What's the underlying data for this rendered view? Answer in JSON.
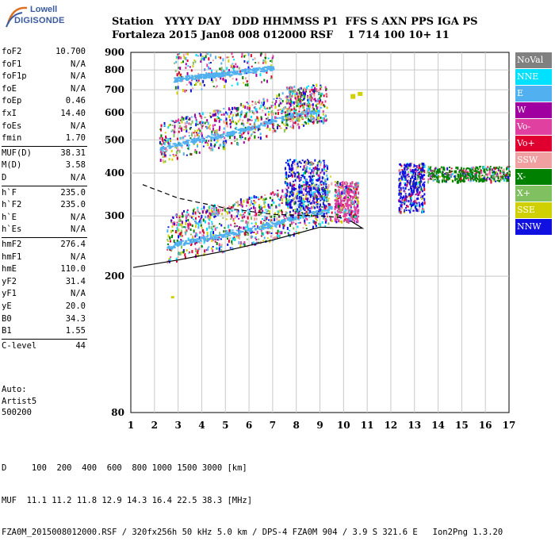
{
  "header": {
    "logo": {
      "line1": "Lowell",
      "line2": "DIGISONDE"
    },
    "row1": "Station   YYYY DAY   DDD HHMMSS P1  FFS S AXN PPS IGA PS",
    "row2": "Fortaleza 2015 Jan08 008 012000 RSF    1 714 100 10+ 11"
  },
  "params": [
    {
      "name": "foF2",
      "value": "10.700"
    },
    {
      "name": "foF1",
      "value": "N/A"
    },
    {
      "name": "foF1p",
      "value": "N/A"
    },
    {
      "name": "foE",
      "value": "N/A"
    },
    {
      "name": "foEp",
      "value": "0.46"
    },
    {
      "name": "fxI",
      "value": "14.40"
    },
    {
      "name": "foEs",
      "value": "N/A"
    },
    {
      "name": "fmin",
      "value": "1.70"
    },
    {
      "name": "MUF(D)",
      "value": "38.31"
    },
    {
      "name": "M(D)",
      "value": "3.58"
    },
    {
      "name": "D",
      "value": "N/A"
    },
    {
      "name": "h`F",
      "value": "235.0"
    },
    {
      "name": "h`F2",
      "value": "235.0"
    },
    {
      "name": "h`E",
      "value": "N/A"
    },
    {
      "name": "h`Es",
      "value": "N/A"
    },
    {
      "name": "hmF2",
      "value": "276.4"
    },
    {
      "name": "hmF1",
      "value": "N/A"
    },
    {
      "name": "hmE",
      "value": "110.0"
    },
    {
      "name": "yF2",
      "value": "31.4"
    },
    {
      "name": "yF1",
      "value": "N/A"
    },
    {
      "name": "yE",
      "value": "20.0"
    },
    {
      "name": "B0",
      "value": "34.3"
    },
    {
      "name": "B1",
      "value": "1.55"
    },
    {
      "name": "C-level",
      "value": "44"
    }
  ],
  "auto": {
    "line1": "Auto:",
    "line2": "Artist5",
    "line3": "500200"
  },
  "legend": [
    {
      "label": "NoVal",
      "color": "#808080"
    },
    {
      "label": "NNE",
      "color": "#00e0ff"
    },
    {
      "label": "E",
      "color": "#50b0f0"
    },
    {
      "label": "W",
      "color": "#a000a0"
    },
    {
      "label": "Vo-",
      "color": "#e040a0"
    },
    {
      "label": "Vo+",
      "color": "#e00030"
    },
    {
      "label": "SSW",
      "color": "#f0a0a0"
    },
    {
      "label": "X-",
      "color": "#008000"
    },
    {
      "label": "X+",
      "color": "#80c060"
    },
    {
      "label": "SSE",
      "color": "#d0d000"
    },
    {
      "label": "NNW",
      "color": "#1010e0"
    }
  ],
  "bottom": {
    "line1": "D     100  200  400  600  800 1000 1500 3000 [km]",
    "line2": "MUF  11.1 11.2 11.8 12.9 14.3 16.4 22.5 38.3 [MHz]",
    "line3": "FZA0M_2015008012000.RSF / 320fx256h 50 kHz 5.0 km / DPS-4 FZA0M 904 / 3.9 S 321.6 E   Ion2Png 1.3.20"
  },
  "chart_data": {
    "type": "scatter",
    "xlabel": "",
    "ylabel": "",
    "xlim": [
      1,
      17
    ],
    "ylim": [
      80,
      900
    ],
    "y_scale": "log",
    "x_ticks": [
      1,
      2,
      3,
      4,
      5,
      6,
      7,
      8,
      9,
      10,
      11,
      12,
      13,
      14,
      15,
      16,
      17
    ],
    "y_ticks": [
      80,
      200,
      300,
      400,
      500,
      600,
      700,
      800,
      900
    ],
    "grid": true,
    "legend_position": "right",
    "traces": [
      {
        "name": "F2 trace",
        "direction": "E",
        "x": [
          2.5,
          3,
          4,
          5,
          6,
          7,
          8,
          9,
          9.5
        ],
        "y": [
          242,
          250,
          258,
          265,
          275,
          285,
          298,
          310,
          320
        ]
      },
      {
        "name": "2F trace",
        "direction": "E",
        "x": [
          2.2,
          3,
          4,
          5,
          6,
          7,
          8,
          9
        ],
        "y": [
          470,
          488,
          505,
          520,
          545,
          570,
          595,
          615
        ]
      },
      {
        "name": "3F trace",
        "direction": "E",
        "x": [
          2.8,
          3.5,
          4.5,
          5.5,
          6.5,
          7
        ],
        "y": [
          750,
          765,
          775,
          790,
          805,
          815
        ]
      }
    ],
    "profile_curves": [
      {
        "name": "dashed",
        "x": [
          1.5,
          3,
          5,
          7,
          9,
          10
        ],
        "y": [
          370,
          338,
          316,
          303,
          300,
          296
        ]
      },
      {
        "name": "solid",
        "x": [
          1.1,
          3,
          5,
          7,
          9,
          10.8
        ],
        "y": [
          212,
          223,
          237,
          255,
          278,
          276
        ]
      }
    ]
  }
}
